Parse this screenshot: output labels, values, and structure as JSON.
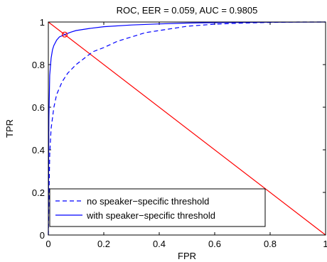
{
  "chart_data": {
    "type": "line",
    "title": "ROC, EER = 0.059, AUC = 0.9805",
    "xlabel": "FPR",
    "ylabel": "TPR",
    "xlim": [
      0,
      1
    ],
    "ylim": [
      0,
      1
    ],
    "x_ticks": [
      "0",
      "0.2",
      "0.4",
      "0.6",
      "0.8",
      "1"
    ],
    "y_ticks": [
      "0",
      "0.2",
      "0.4",
      "0.6",
      "0.8",
      "1"
    ],
    "grid": false,
    "legend_position": "bottom-left",
    "series": [
      {
        "name": "no speaker−specific threshold",
        "color": "#0000ff",
        "style": "dashed",
        "x": [
          0,
          0.005,
          0.01,
          0.02,
          0.03,
          0.05,
          0.07,
          0.1,
          0.13,
          0.16,
          0.2,
          0.25,
          0.3,
          0.35,
          0.4,
          0.45,
          0.5,
          0.6,
          0.7,
          0.8,
          0.9,
          1.0
        ],
        "y": [
          0,
          0.38,
          0.5,
          0.6,
          0.66,
          0.72,
          0.76,
          0.8,
          0.83,
          0.86,
          0.88,
          0.91,
          0.93,
          0.95,
          0.96,
          0.97,
          0.98,
          0.99,
          0.995,
          0.998,
          1.0,
          1.0
        ]
      },
      {
        "name": "with speaker−specific threshold",
        "color": "#0000ff",
        "style": "solid",
        "x": [
          0,
          0.002,
          0.005,
          0.01,
          0.015,
          0.02,
          0.03,
          0.04,
          0.059,
          0.08,
          0.1,
          0.15,
          0.2,
          0.3,
          0.4,
          0.5,
          0.6,
          0.8,
          1.0
        ],
        "y": [
          0,
          0.55,
          0.75,
          0.83,
          0.87,
          0.89,
          0.915,
          0.93,
          0.941,
          0.952,
          0.96,
          0.97,
          0.978,
          0.986,
          0.991,
          0.995,
          0.997,
          0.999,
          1.0
        ]
      }
    ],
    "eer_line": {
      "x": [
        0,
        1
      ],
      "y": [
        1,
        0
      ],
      "color": "#ff0000"
    },
    "eer_marker": {
      "x": 0.059,
      "y": 0.941,
      "color": "#ff0000"
    }
  }
}
